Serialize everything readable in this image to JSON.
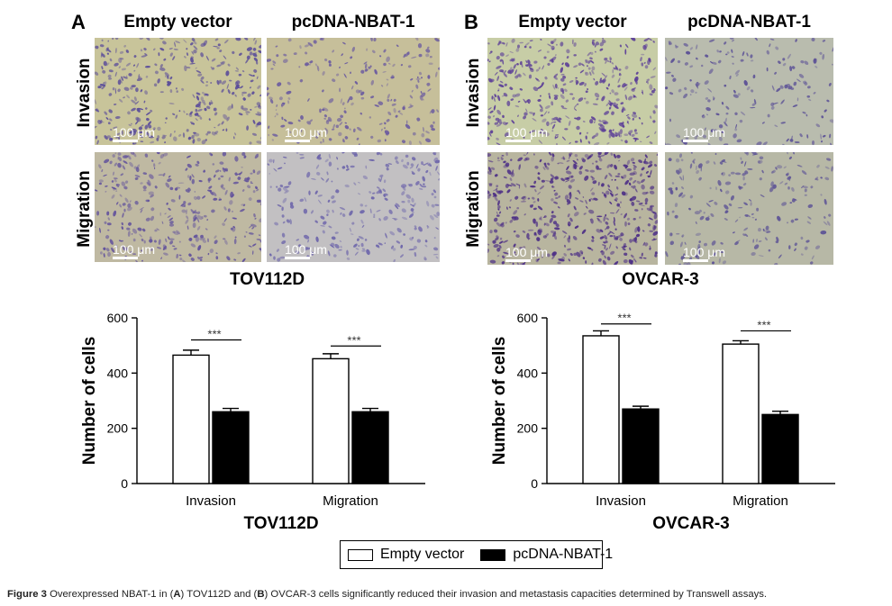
{
  "figure": {
    "panels": [
      {
        "letter": "A",
        "cell_line": "TOV112D",
        "col_headers": [
          "Empty vector",
          "pcDNA-NBAT-1"
        ],
        "row_labels": [
          "Invasion",
          "Migration"
        ],
        "scale_bar_label": "100 μm",
        "images": [
          {
            "bg": "#c8c49a",
            "dot": "#5a4c9a",
            "density": 0.9
          },
          {
            "bg": "#c6bf9a",
            "dot": "#6a5aa0",
            "density": 0.55
          },
          {
            "bg": "#bfb9a2",
            "dot": "#5f4f9c",
            "density": 0.8
          },
          {
            "bg": "#c2c0c2",
            "dot": "#6b63aa",
            "density": 0.6
          }
        ]
      },
      {
        "letter": "B",
        "cell_line": "OVCAR-3",
        "col_headers": [
          "Empty vector",
          "pcDNA-NBAT-1"
        ],
        "row_labels": [
          "Invasion",
          "Migration"
        ],
        "scale_bar_label": "100 μm",
        "images": [
          {
            "bg": "#c7cda6",
            "dot": "#5c3f98",
            "density": 1.0
          },
          {
            "bg": "#b9bcae",
            "dot": "#5a4f96",
            "density": 0.45
          },
          {
            "bg": "#b8b59f",
            "dot": "#4c2e86",
            "density": 1.1
          },
          {
            "bg": "#b7b8a6",
            "dot": "#5d5396",
            "density": 0.5
          }
        ]
      }
    ]
  },
  "chart_data": [
    {
      "type": "bar",
      "title": "TOV112D",
      "ylabel": "Number of cells",
      "categories": [
        "Invasion",
        "Migration"
      ],
      "ylim": [
        0,
        600
      ],
      "yticks": [
        0,
        200,
        400,
        600
      ],
      "series": [
        {
          "name": "Empty vector",
          "values": [
            465,
            452
          ],
          "errors": [
            18,
            18
          ],
          "fill": "#ffffff"
        },
        {
          "name": "pcDNA-NBAT-1",
          "values": [
            260,
            260
          ],
          "errors": [
            12,
            12
          ],
          "fill": "#000000"
        }
      ],
      "significance": [
        "***",
        "***"
      ],
      "bracket_heights": [
        520,
        498
      ]
    },
    {
      "type": "bar",
      "title": "OVCAR-3",
      "ylabel": "Number of cells",
      "categories": [
        "Invasion",
        "Migration"
      ],
      "ylim": [
        0,
        600
      ],
      "yticks": [
        0,
        200,
        400,
        600
      ],
      "series": [
        {
          "name": "Empty vector",
          "values": [
            535,
            505
          ],
          "errors": [
            18,
            12
          ],
          "fill": "#ffffff"
        },
        {
          "name": "pcDNA-NBAT-1",
          "values": [
            270,
            250
          ],
          "errors": [
            10,
            12
          ],
          "fill": "#000000"
        }
      ],
      "significance": [
        "***",
        "***"
      ],
      "bracket_heights": [
        578,
        553
      ]
    }
  ],
  "legend": {
    "items": [
      {
        "label": "Empty vector",
        "fill": "#ffffff"
      },
      {
        "label": "pcDNA-NBAT-1",
        "fill": "#000000"
      }
    ]
  },
  "caption": {
    "figure_label": "Figure 3",
    "text_1": " Overexpressed NBAT-1 in (",
    "a": "A",
    "text_2": ") TOV112D and (",
    "b": "B",
    "text_3": ") OVCAR-3 cells significantly reduced their invasion and metastasis capacities determined by Transwell assays."
  }
}
